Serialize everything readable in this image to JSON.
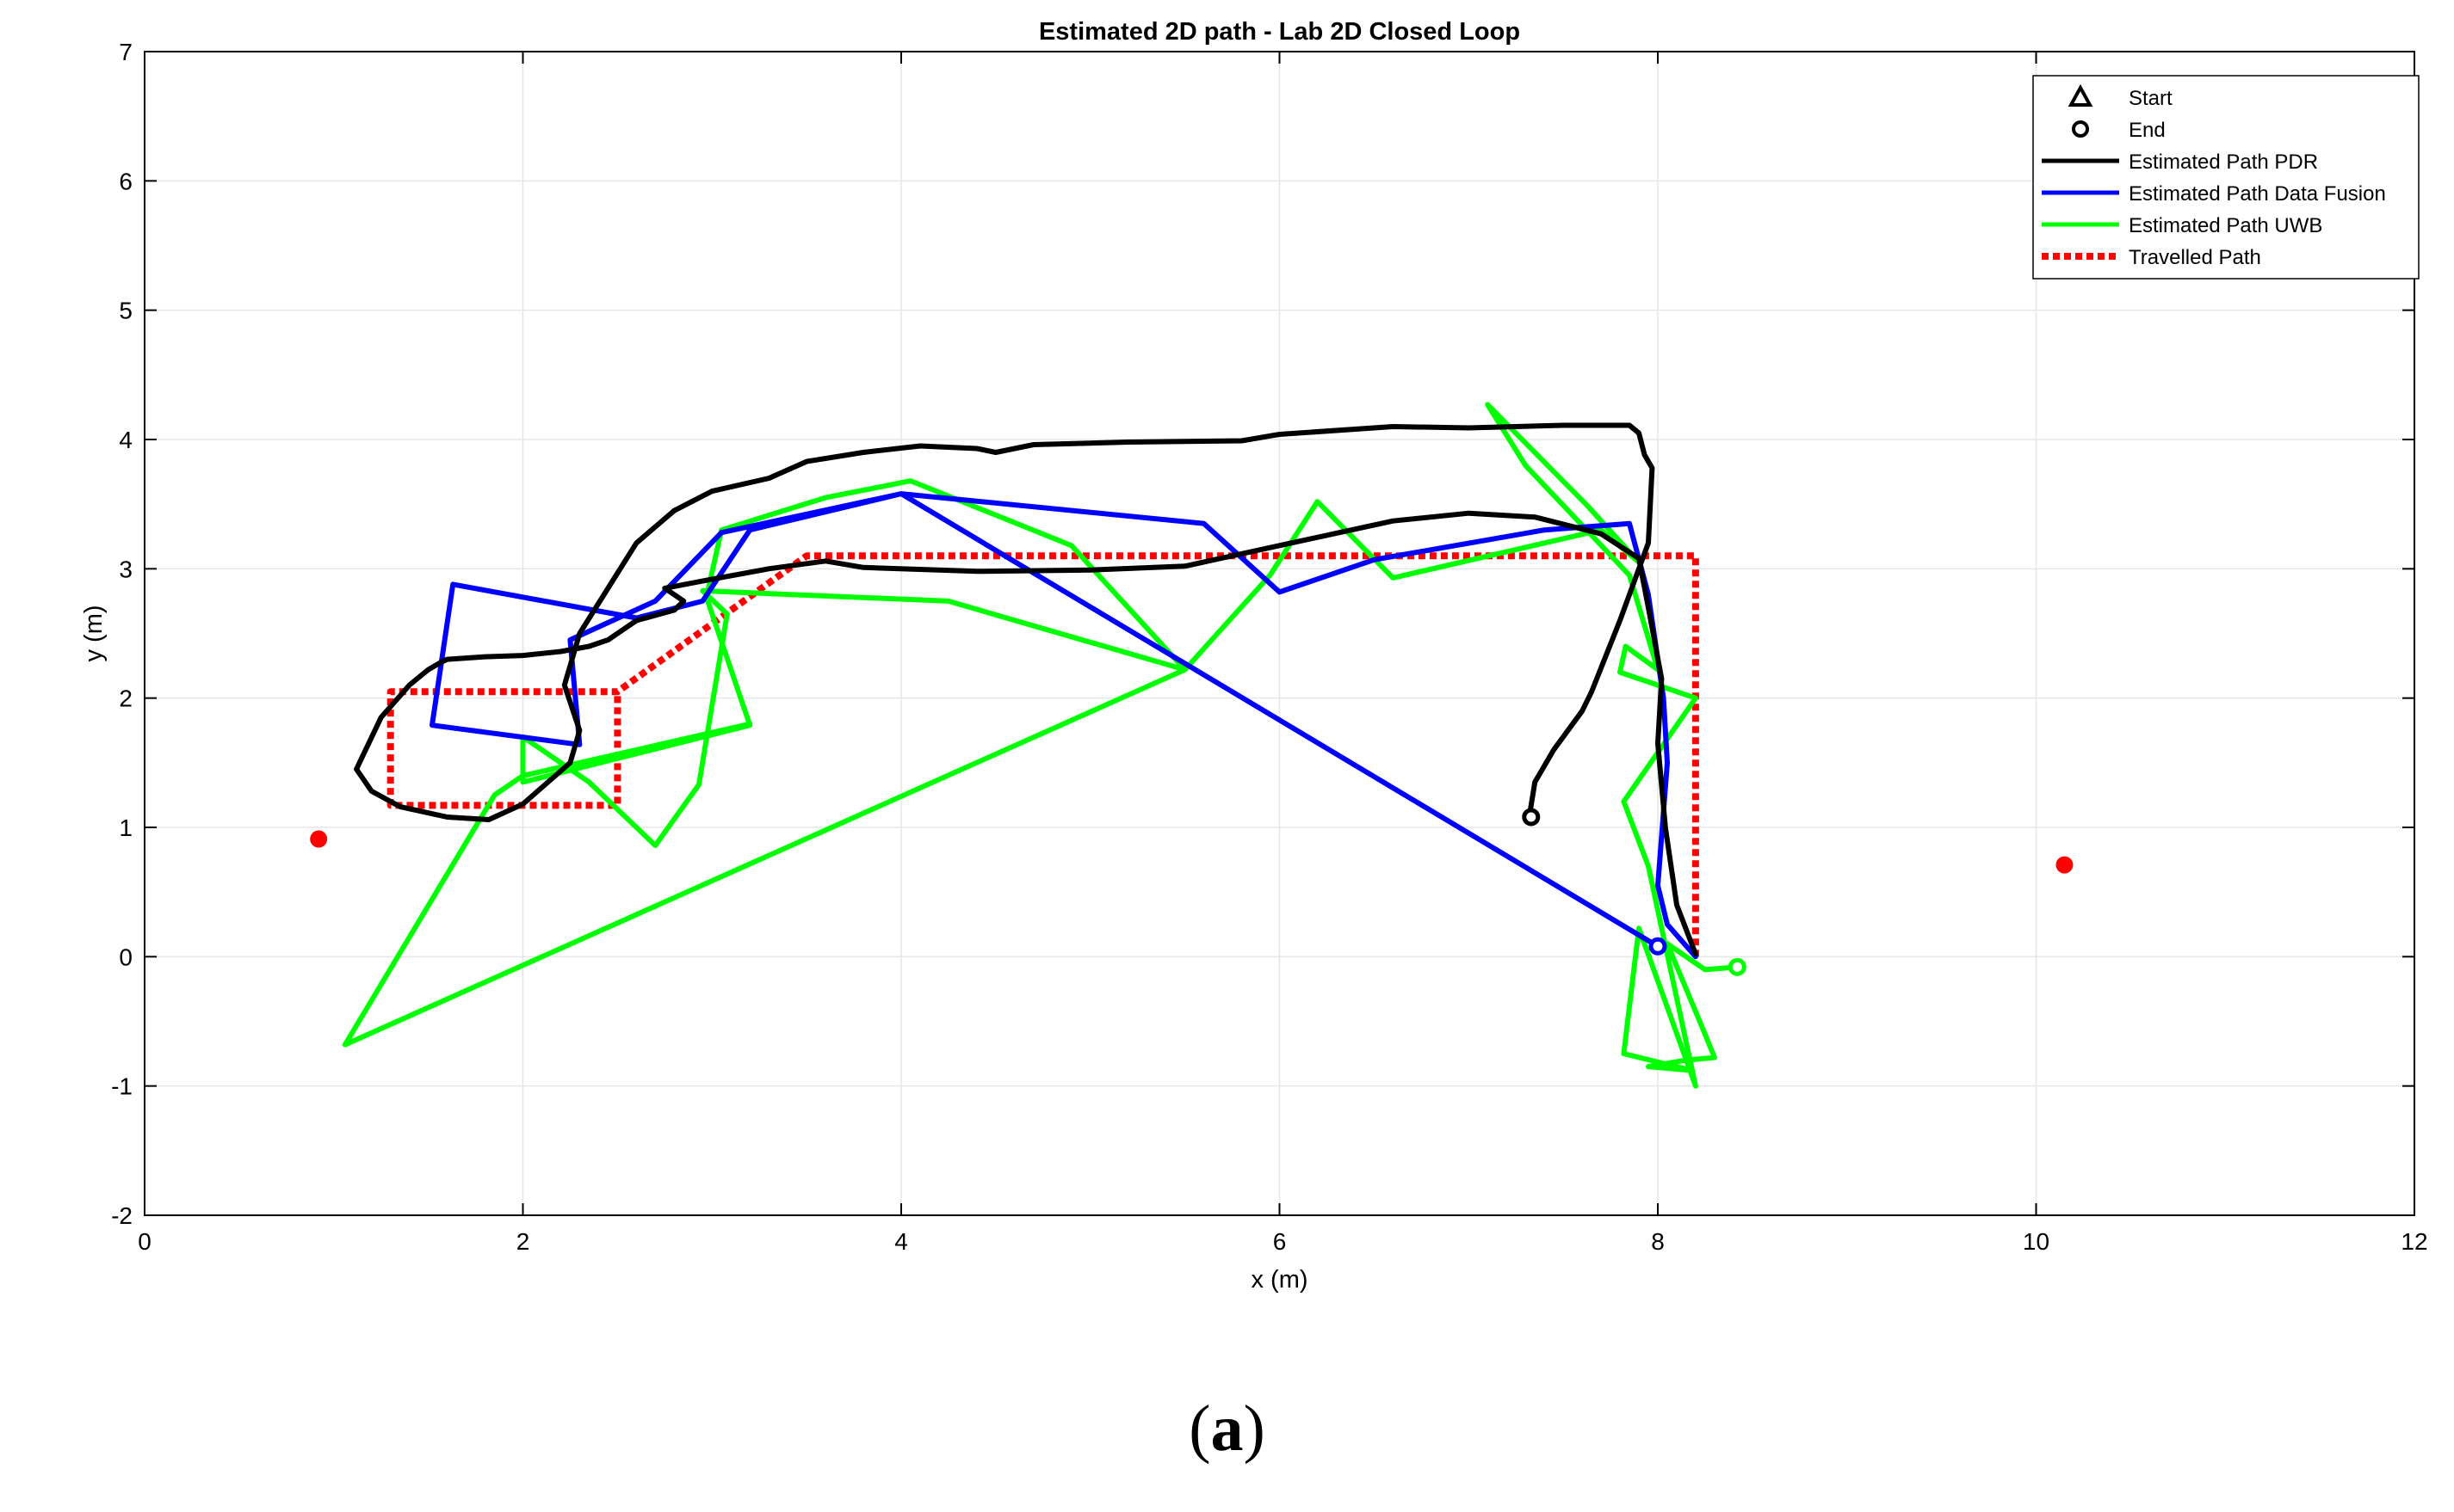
{
  "caption": {
    "open": "(",
    "letter": "a",
    "close": ")"
  },
  "chart_data": {
    "type": "line",
    "title": "Estimated 2D path - Lab 2D Closed Loop",
    "xlabel": "x (m)",
    "ylabel": "y (m)",
    "xlim": [
      0,
      12
    ],
    "ylim": [
      -2,
      7
    ],
    "xticks": [
      "0",
      "2",
      "4",
      "6",
      "8",
      "10",
      "12"
    ],
    "yticks": [
      "-2",
      "-1",
      "0",
      "1",
      "2",
      "3",
      "4",
      "5",
      "6",
      "7"
    ],
    "grid": true,
    "legend_position": "top-right",
    "legend": [
      {
        "label": "Start",
        "marker": "triangle",
        "color": "#000000"
      },
      {
        "label": "End",
        "marker": "circle-open",
        "color": "#000000"
      },
      {
        "label": "Estimated Path PDR",
        "line": "solid",
        "color": "#000000"
      },
      {
        "label": "Estimated Path Data Fusion",
        "line": "solid",
        "color": "#0000ff"
      },
      {
        "label": "Estimated Path UWB",
        "line": "solid",
        "color": "#00ff00"
      },
      {
        "label": "Travelled Path",
        "line": "dotted",
        "color": "#ff0000"
      }
    ],
    "anchors": {
      "color": "#ff0000",
      "points": [
        [
          0.92,
          0.91
        ],
        [
          10.15,
          0.71
        ]
      ]
    },
    "series": [
      {
        "name": "Travelled Path",
        "color": "#ff0000",
        "style": "dotted",
        "points": [
          [
            8.2,
            0.0
          ],
          [
            8.2,
            3.1
          ],
          [
            3.5,
            3.1
          ],
          [
            2.5,
            2.05
          ],
          [
            1.3,
            2.05
          ],
          [
            1.3,
            1.17
          ],
          [
            2.5,
            1.17
          ],
          [
            2.5,
            2.05
          ]
        ]
      },
      {
        "name": "Estimated Path PDR",
        "color": "#000000",
        "style": "solid",
        "points": [
          [
            8.2,
            0.02
          ],
          [
            8.1,
            0.4
          ],
          [
            8.04,
            1.0
          ],
          [
            8.0,
            1.65
          ],
          [
            8.02,
            2.15
          ],
          [
            7.95,
            2.7
          ],
          [
            7.9,
            3.08
          ],
          [
            7.7,
            3.27
          ],
          [
            7.35,
            3.4
          ],
          [
            7.0,
            3.43
          ],
          [
            6.6,
            3.37
          ],
          [
            6.0,
            3.18
          ],
          [
            5.5,
            3.02
          ],
          [
            5.0,
            2.99
          ],
          [
            4.4,
            2.98
          ],
          [
            3.8,
            3.01
          ],
          [
            3.6,
            3.06
          ],
          [
            3.3,
            3.0
          ],
          [
            3.0,
            2.92
          ],
          [
            2.75,
            2.85
          ],
          [
            2.85,
            2.75
          ],
          [
            2.8,
            2.68
          ],
          [
            2.6,
            2.6
          ],
          [
            2.45,
            2.45
          ],
          [
            2.35,
            2.4
          ],
          [
            2.2,
            2.36
          ],
          [
            2.0,
            2.33
          ],
          [
            1.8,
            2.32
          ],
          [
            1.6,
            2.3
          ],
          [
            1.57,
            2.28
          ],
          [
            1.5,
            2.22
          ],
          [
            1.4,
            2.1
          ],
          [
            1.25,
            1.85
          ],
          [
            1.12,
            1.45
          ],
          [
            1.2,
            1.28
          ],
          [
            1.35,
            1.16
          ],
          [
            1.6,
            1.08
          ],
          [
            1.82,
            1.06
          ],
          [
            2.0,
            1.18
          ],
          [
            2.25,
            1.5
          ],
          [
            2.3,
            1.75
          ],
          [
            2.22,
            2.1
          ],
          [
            2.3,
            2.5
          ],
          [
            2.45,
            2.85
          ],
          [
            2.6,
            3.2
          ],
          [
            2.8,
            3.45
          ],
          [
            3.0,
            3.6
          ],
          [
            3.3,
            3.7
          ],
          [
            3.5,
            3.83
          ],
          [
            3.8,
            3.9
          ],
          [
            4.1,
            3.95
          ],
          [
            4.4,
            3.93
          ],
          [
            4.5,
            3.9
          ],
          [
            4.7,
            3.96
          ],
          [
            5.2,
            3.98
          ],
          [
            5.8,
            3.99
          ],
          [
            6.0,
            4.04
          ],
          [
            6.6,
            4.1
          ],
          [
            7.0,
            4.09
          ],
          [
            7.5,
            4.11
          ],
          [
            7.85,
            4.11
          ],
          [
            7.9,
            4.05
          ],
          [
            7.93,
            3.88
          ],
          [
            7.97,
            3.78
          ],
          [
            7.95,
            3.2
          ],
          [
            7.8,
            2.6
          ],
          [
            7.65,
            2.05
          ],
          [
            7.6,
            1.9
          ],
          [
            7.45,
            1.6
          ],
          [
            7.35,
            1.35
          ],
          [
            7.32,
            1.08
          ]
        ]
      },
      {
        "name": "Estimated Path Data Fusion",
        "color": "#0000ff",
        "style": "solid",
        "points": [
          [
            8.2,
            0.0
          ],
          [
            8.05,
            0.25
          ],
          [
            8.0,
            0.55
          ],
          [
            8.05,
            1.5
          ],
          [
            8.03,
            2.0
          ],
          [
            7.95,
            2.8
          ],
          [
            7.85,
            3.35
          ],
          [
            7.4,
            3.3
          ],
          [
            6.5,
            3.07
          ],
          [
            6.0,
            2.82
          ],
          [
            5.6,
            3.35
          ],
          [
            4.0,
            3.58
          ],
          [
            3.2,
            3.3
          ],
          [
            2.95,
            2.75
          ],
          [
            2.6,
            2.62
          ],
          [
            1.63,
            2.88
          ],
          [
            1.52,
            1.79
          ],
          [
            2.3,
            1.64
          ],
          [
            2.25,
            2.45
          ],
          [
            2.7,
            2.75
          ],
          [
            3.05,
            3.28
          ],
          [
            4.0,
            3.58
          ],
          [
            8.0,
            0.08
          ]
        ]
      },
      {
        "name": "Estimated Path UWB",
        "color": "#00ff00",
        "style": "solid",
        "points": [
          [
            8.42,
            -0.08
          ],
          [
            8.25,
            -0.1
          ],
          [
            8.05,
            0.1
          ],
          [
            8.25,
            -0.6
          ],
          [
            8.3,
            -0.78
          ],
          [
            8.15,
            -0.8
          ],
          [
            7.95,
            -0.85
          ],
          [
            8.18,
            -0.88
          ],
          [
            7.82,
            -0.75
          ],
          [
            7.9,
            0.22
          ],
          [
            8.2,
            -1.0
          ],
          [
            7.95,
            0.7
          ],
          [
            7.82,
            1.2
          ],
          [
            8.2,
            2.0
          ],
          [
            7.8,
            2.2
          ],
          [
            7.83,
            2.4
          ],
          [
            8.0,
            2.22
          ],
          [
            7.85,
            2.95
          ],
          [
            7.3,
            3.8
          ],
          [
            7.1,
            4.27
          ],
          [
            7.62,
            3.5
          ],
          [
            7.9,
            3.05
          ],
          [
            7.7,
            3.3
          ],
          [
            6.6,
            2.93
          ],
          [
            6.2,
            3.52
          ],
          [
            5.95,
            2.95
          ],
          [
            5.5,
            2.22
          ],
          [
            4.9,
            3.18
          ],
          [
            4.05,
            3.68
          ],
          [
            3.6,
            3.55
          ],
          [
            3.05,
            3.3
          ],
          [
            2.97,
            2.78
          ],
          [
            3.2,
            1.79
          ],
          [
            2.0,
            1.35
          ],
          [
            2.0,
            1.7
          ],
          [
            2.35,
            1.35
          ],
          [
            2.7,
            0.86
          ],
          [
            2.93,
            1.33
          ],
          [
            3.08,
            2.65
          ],
          [
            2.95,
            2.83
          ],
          [
            4.25,
            2.75
          ],
          [
            5.5,
            2.22
          ],
          [
            1.06,
            -0.68
          ],
          [
            1.85,
            1.25
          ],
          [
            2.0,
            1.4
          ],
          [
            3.2,
            1.8
          ]
        ]
      }
    ],
    "markers": [
      {
        "type": "end",
        "color": "#000000",
        "at": [
          7.33,
          1.08
        ]
      },
      {
        "type": "end",
        "color": "#00ff00",
        "at": [
          8.42,
          -0.08
        ]
      },
      {
        "type": "end",
        "color": "#0000ff",
        "at": [
          8.0,
          0.08
        ]
      }
    ]
  }
}
